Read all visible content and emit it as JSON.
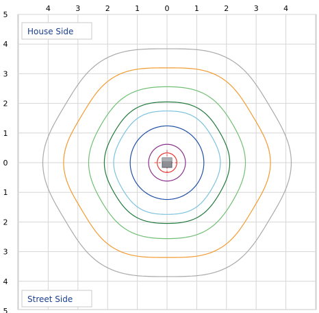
{
  "chart_data": {
    "type": "contour",
    "x_tick_labels": [
      "4",
      "3",
      "2",
      "1",
      "0",
      "1",
      "2",
      "3",
      "4"
    ],
    "y_tick_labels": [
      "5",
      "4",
      "3",
      "2",
      "1",
      "0",
      "1",
      "2",
      "3",
      "4",
      "5"
    ],
    "x_range": [
      -5,
      5
    ],
    "y_range": [
      -5,
      5
    ],
    "grid": true,
    "top_label": "House Side",
    "bottom_label": "Street Side",
    "light_position": [
      0,
      0
    ],
    "contours": [
      {
        "color": "#e8332e",
        "radius": 0.33,
        "dashed_crosshair": true
      },
      {
        "color": "#8b2f8e",
        "radius": 0.62
      },
      {
        "color": "#1f4fa6",
        "radius": 1.24
      },
      {
        "color": "#7cc2df",
        "radius": 1.77
      },
      {
        "color": "#1f7a3a",
        "radius": 2.08
      },
      {
        "color": "#6fbf72",
        "radius": 2.6
      },
      {
        "color": "#f39a2e",
        "radius": 3.33
      },
      {
        "color": "#a9a9a9",
        "radius": 4.0
      }
    ]
  }
}
